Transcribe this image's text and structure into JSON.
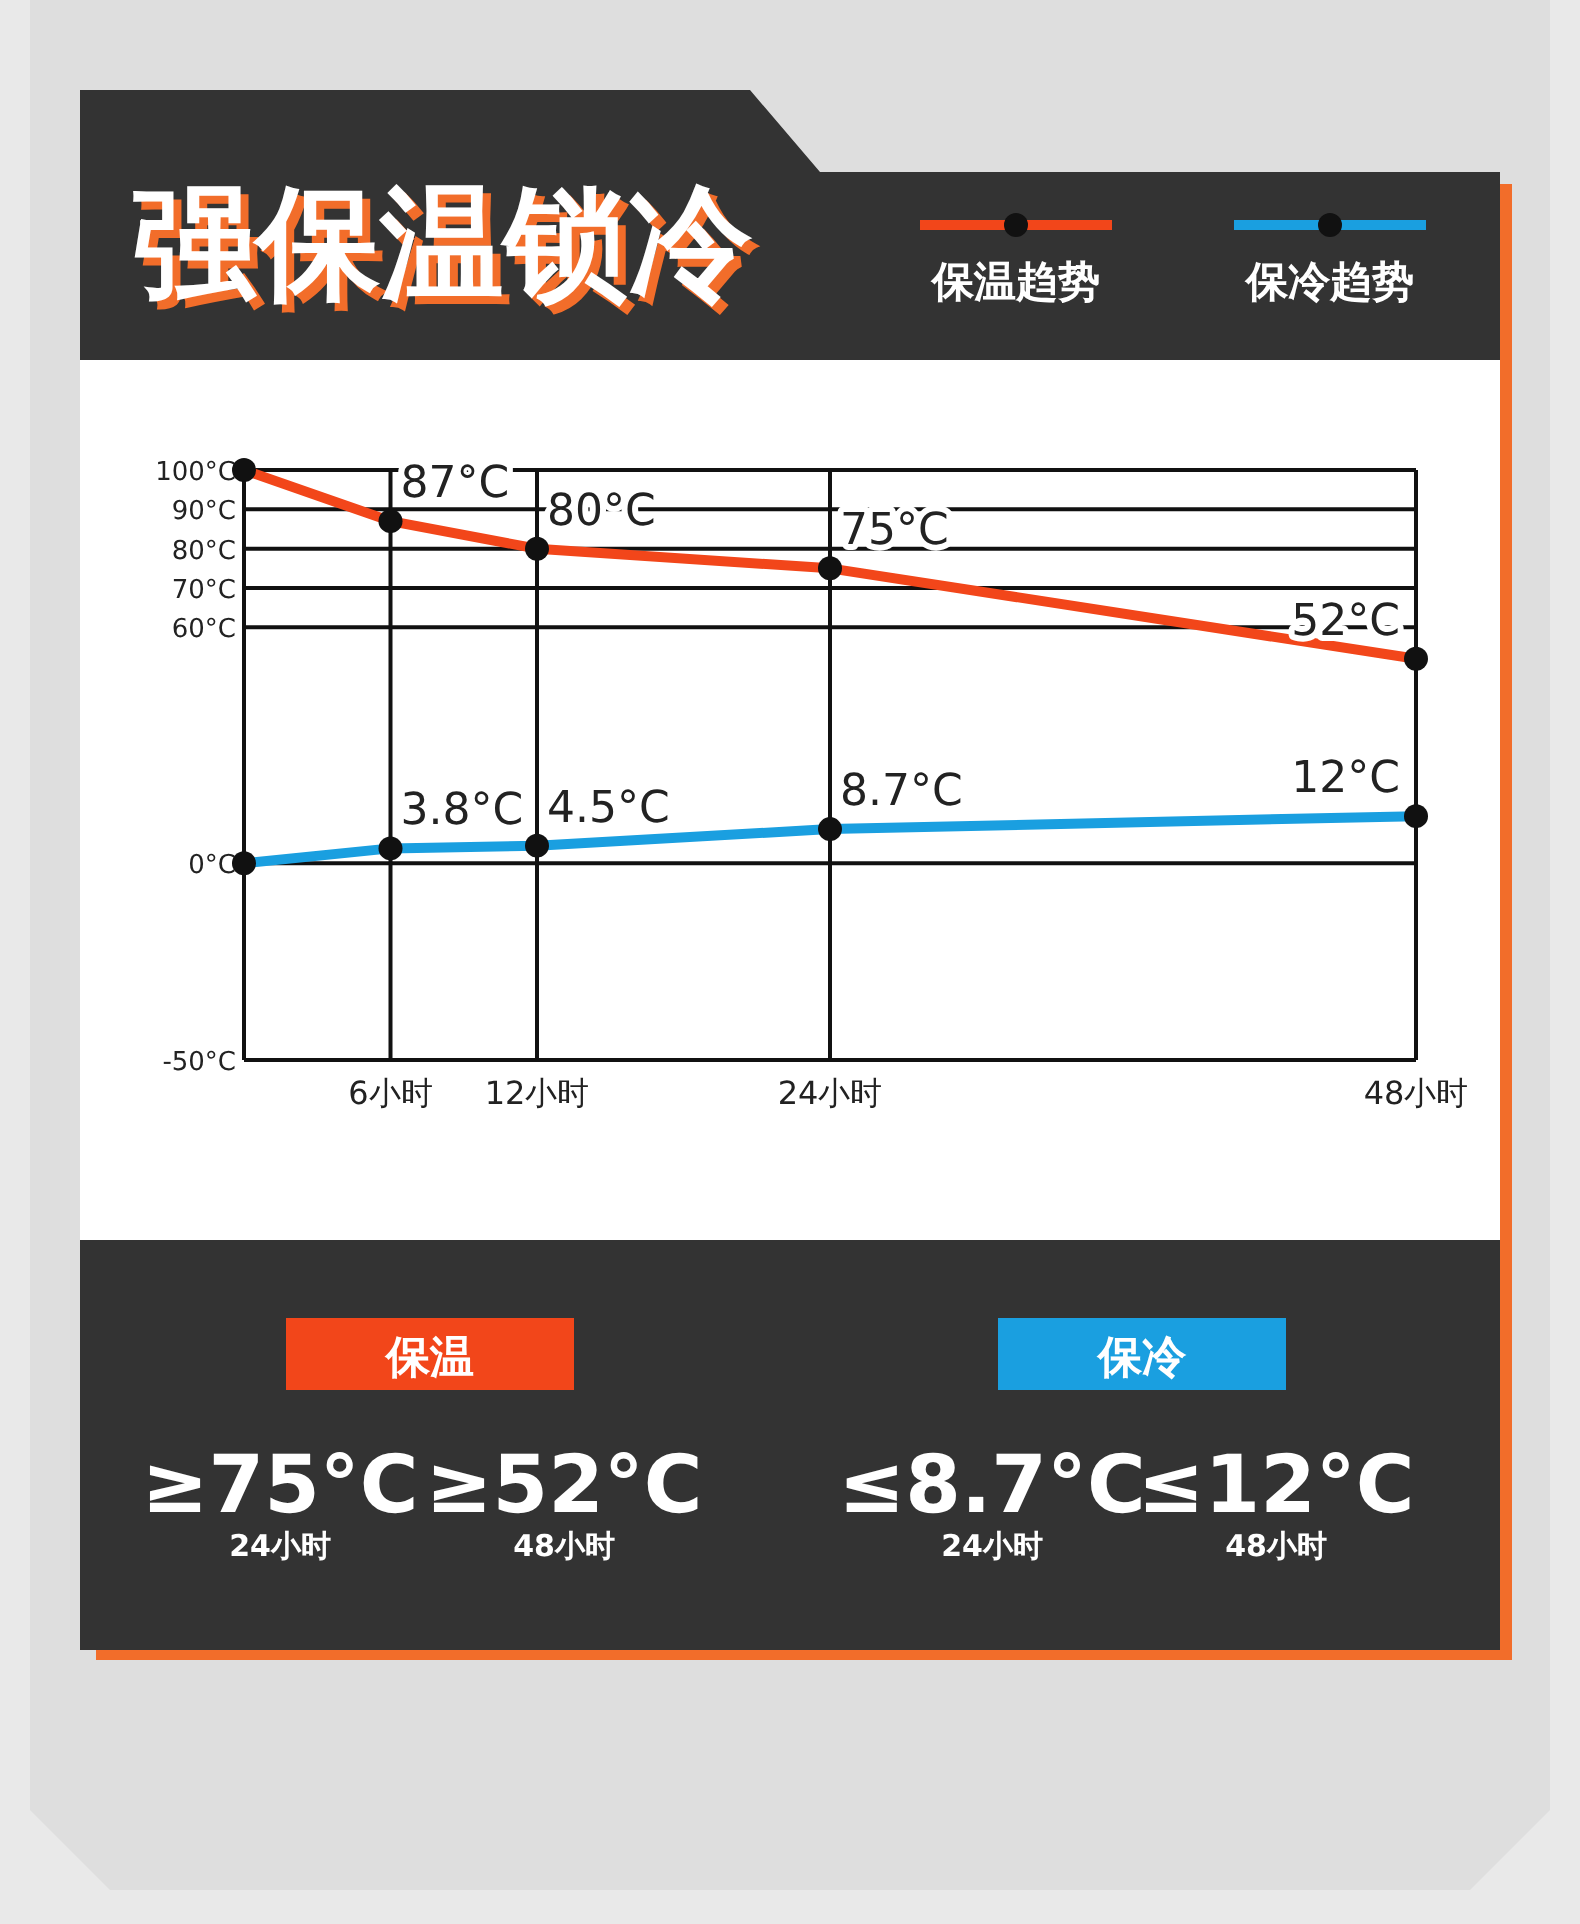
{
  "chart_data": {
    "type": "line",
    "title": "强保温锁冷",
    "x": [
      0,
      6,
      12,
      24,
      48
    ],
    "xlim": [
      0,
      48
    ],
    "xticks": [
      {
        "value": 6,
        "label": "6小时"
      },
      {
        "value": 12,
        "label": "12小时"
      },
      {
        "value": 24,
        "label": "24小时"
      },
      {
        "value": 48,
        "label": "48小时"
      }
    ],
    "ylim": [
      -50,
      100
    ],
    "yticks": [
      {
        "value": -50,
        "label": "-50°C"
      },
      {
        "value": 0,
        "label": "0°C"
      },
      {
        "value": 60,
        "label": "60°C"
      },
      {
        "value": 70,
        "label": "70°C"
      },
      {
        "value": 80,
        "label": "80°C"
      },
      {
        "value": 90,
        "label": "90°C"
      },
      {
        "value": 100,
        "label": "100°C"
      }
    ],
    "series": [
      {
        "name": "保温趋势",
        "color": "#f2461a",
        "values": [
          100,
          87,
          80,
          75,
          52
        ],
        "value_labels": [
          null,
          "87°C",
          "80°C",
          "75°C",
          "52°C"
        ]
      },
      {
        "name": "保冷趋势",
        "color": "#1a9fe0",
        "values": [
          0,
          3.8,
          4.5,
          8.7,
          12
        ],
        "value_labels": [
          null,
          "3.8°C",
          "4.5°C",
          "8.7°C",
          "12°C"
        ]
      }
    ],
    "grid": true,
    "legend": "top right",
    "marker": "circle",
    "annotations": [
      "保温",
      "≥75°C",
      "24小时",
      "≥52°C",
      "48小时",
      "保冷",
      "≤8.7°C",
      "24小时",
      "≤12°C",
      "48小时"
    ]
  }
}
